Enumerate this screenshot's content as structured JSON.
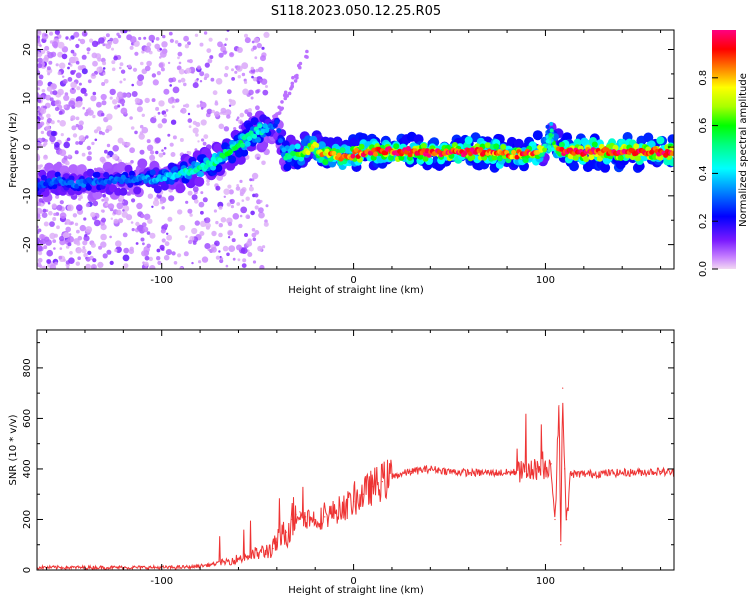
{
  "title": "S118.2023.050.12.25.R05",
  "chart_data": [
    {
      "type": "heatmap",
      "xlabel": "Height of straight line (km)",
      "ylabel": "Frequency (Hz)",
      "xlim": [
        -165,
        167
      ],
      "ylim": [
        -25,
        24
      ],
      "xticks": [
        -100,
        0,
        100
      ],
      "xtick_labels": [
        "-100",
        "0",
        "100"
      ],
      "yticks": [
        -20,
        -10,
        0,
        10,
        20
      ],
      "ytick_labels": [
        "-20",
        "-10",
        "0",
        "10",
        "20"
      ],
      "grid": false,
      "colorbar": {
        "label": "Normalized spectral amplitude",
        "range": [
          0,
          1
        ],
        "ticks": [
          0.0,
          0.2,
          0.4,
          0.6,
          0.8
        ],
        "tick_labels": [
          "0.0",
          "0.2",
          "0.4",
          "0.6",
          "0.8"
        ],
        "colormap": "hsv-like (magenta-blue-cyan-green-yellow-red-pink)"
      },
      "ridge": {
        "x": [
          -165,
          -155,
          -145,
          -135,
          -125,
          -115,
          -105,
          -95,
          -85,
          -75,
          -65,
          -55,
          -48,
          -42,
          -40,
          -38,
          -35,
          -30,
          -25,
          -20,
          -15,
          -10,
          -5,
          0,
          5,
          10,
          20,
          40,
          60,
          70,
          80,
          90,
          95,
          100,
          102,
          105,
          110,
          120,
          140,
          160,
          167
        ],
        "y": [
          -8,
          -7,
          -7.5,
          -7,
          -7,
          -6.5,
          -6.5,
          -6,
          -5,
          -3.5,
          -1,
          2,
          3.5,
          4.5,
          4.5,
          1,
          -2,
          -2,
          -0.5,
          0,
          -1.5,
          -1.5,
          -2,
          -1.5,
          -1,
          -1,
          -1,
          -1,
          -1,
          -1,
          -1.5,
          -1.5,
          -1,
          0,
          3,
          0,
          -1,
          -1,
          -1,
          -1,
          -1
        ],
        "amplitude": [
          0.25,
          0.3,
          0.3,
          0.3,
          0.3,
          0.3,
          0.35,
          0.4,
          0.5,
          0.5,
          0.55,
          0.5,
          0.45,
          0.3,
          0.25,
          0.3,
          0.5,
          0.55,
          0.7,
          0.75,
          0.8,
          0.85,
          0.85,
          0.9,
          0.9,
          0.92,
          0.95,
          0.97,
          0.97,
          0.9,
          0.85,
          0.9,
          0.9,
          0.6,
          0.3,
          0.7,
          0.95,
          0.97,
          0.97,
          0.97,
          0.97
        ]
      }
    },
    {
      "type": "line",
      "xlabel": "Height of straight line (km)",
      "ylabel": "SNR (10 * v/v)",
      "xlim": [
        -165,
        167
      ],
      "ylim": [
        0,
        950
      ],
      "xticks": [
        -100,
        0,
        100
      ],
      "xtick_labels": [
        "-100",
        "0",
        "100"
      ],
      "yticks": [
        0,
        200,
        400,
        600,
        800
      ],
      "ytick_labels": [
        "0",
        "200",
        "400",
        "600",
        "800"
      ],
      "grid": false,
      "series": [
        {
          "color": "#ee3333",
          "x": [
            -165,
            -150,
            -130,
            -110,
            -95,
            -85,
            -75,
            -65,
            -55,
            -48,
            -42,
            -40,
            -35,
            -32,
            -30,
            -28,
            -25,
            -20,
            -15,
            -10,
            -5,
            0,
            5,
            10,
            15,
            20,
            25,
            30,
            35,
            40,
            50,
            60,
            70,
            80,
            90,
            95,
            100,
            103,
            105,
            107,
            108,
            109,
            110,
            111,
            113,
            120,
            140,
            160,
            167
          ],
          "y": [
            10,
            10,
            10,
            10,
            10,
            12,
            20,
            35,
            55,
            70,
            85,
            110,
            150,
            200,
            220,
            230,
            210,
            200,
            210,
            230,
            250,
            270,
            300,
            330,
            350,
            370,
            380,
            390,
            395,
            400,
            390,
            385,
            385,
            385,
            390,
            400,
            400,
            420,
            200,
            650,
            100,
            720,
            400,
            200,
            380,
            380,
            385,
            390,
            385
          ]
        }
      ]
    }
  ]
}
